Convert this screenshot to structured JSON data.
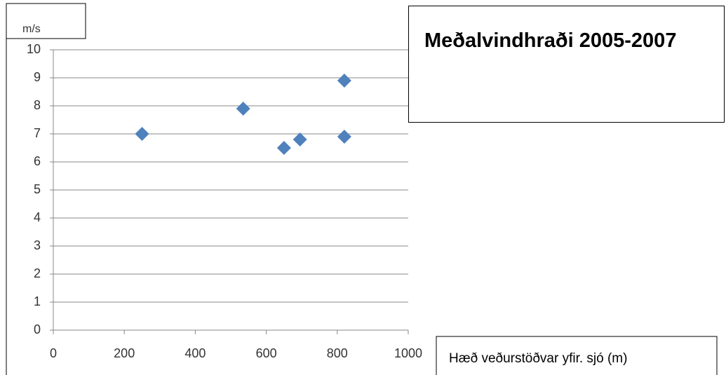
{
  "chart_data": {
    "type": "scatter",
    "title": "Meðalvindhraði 2005-2007",
    "y_label": "m/s",
    "x_label": "Hæð veðurstöðvar yfir. sjó (m)",
    "series": [
      {
        "color": "#4f81bd",
        "x": [
          250,
          535,
          650,
          695,
          820,
          820
        ],
        "values": [
          7.0,
          7.9,
          6.5,
          6.8,
          8.9,
          6.9
        ]
      }
    ],
    "xlim": [
      0,
      1000
    ],
    "xticks": [
      0,
      200,
      400,
      600,
      800,
      1000
    ],
    "ylim": [
      0,
      10
    ],
    "yticks": [
      0,
      1,
      2,
      3,
      4,
      5,
      6,
      7,
      8,
      9,
      10
    ],
    "grid": true
  }
}
